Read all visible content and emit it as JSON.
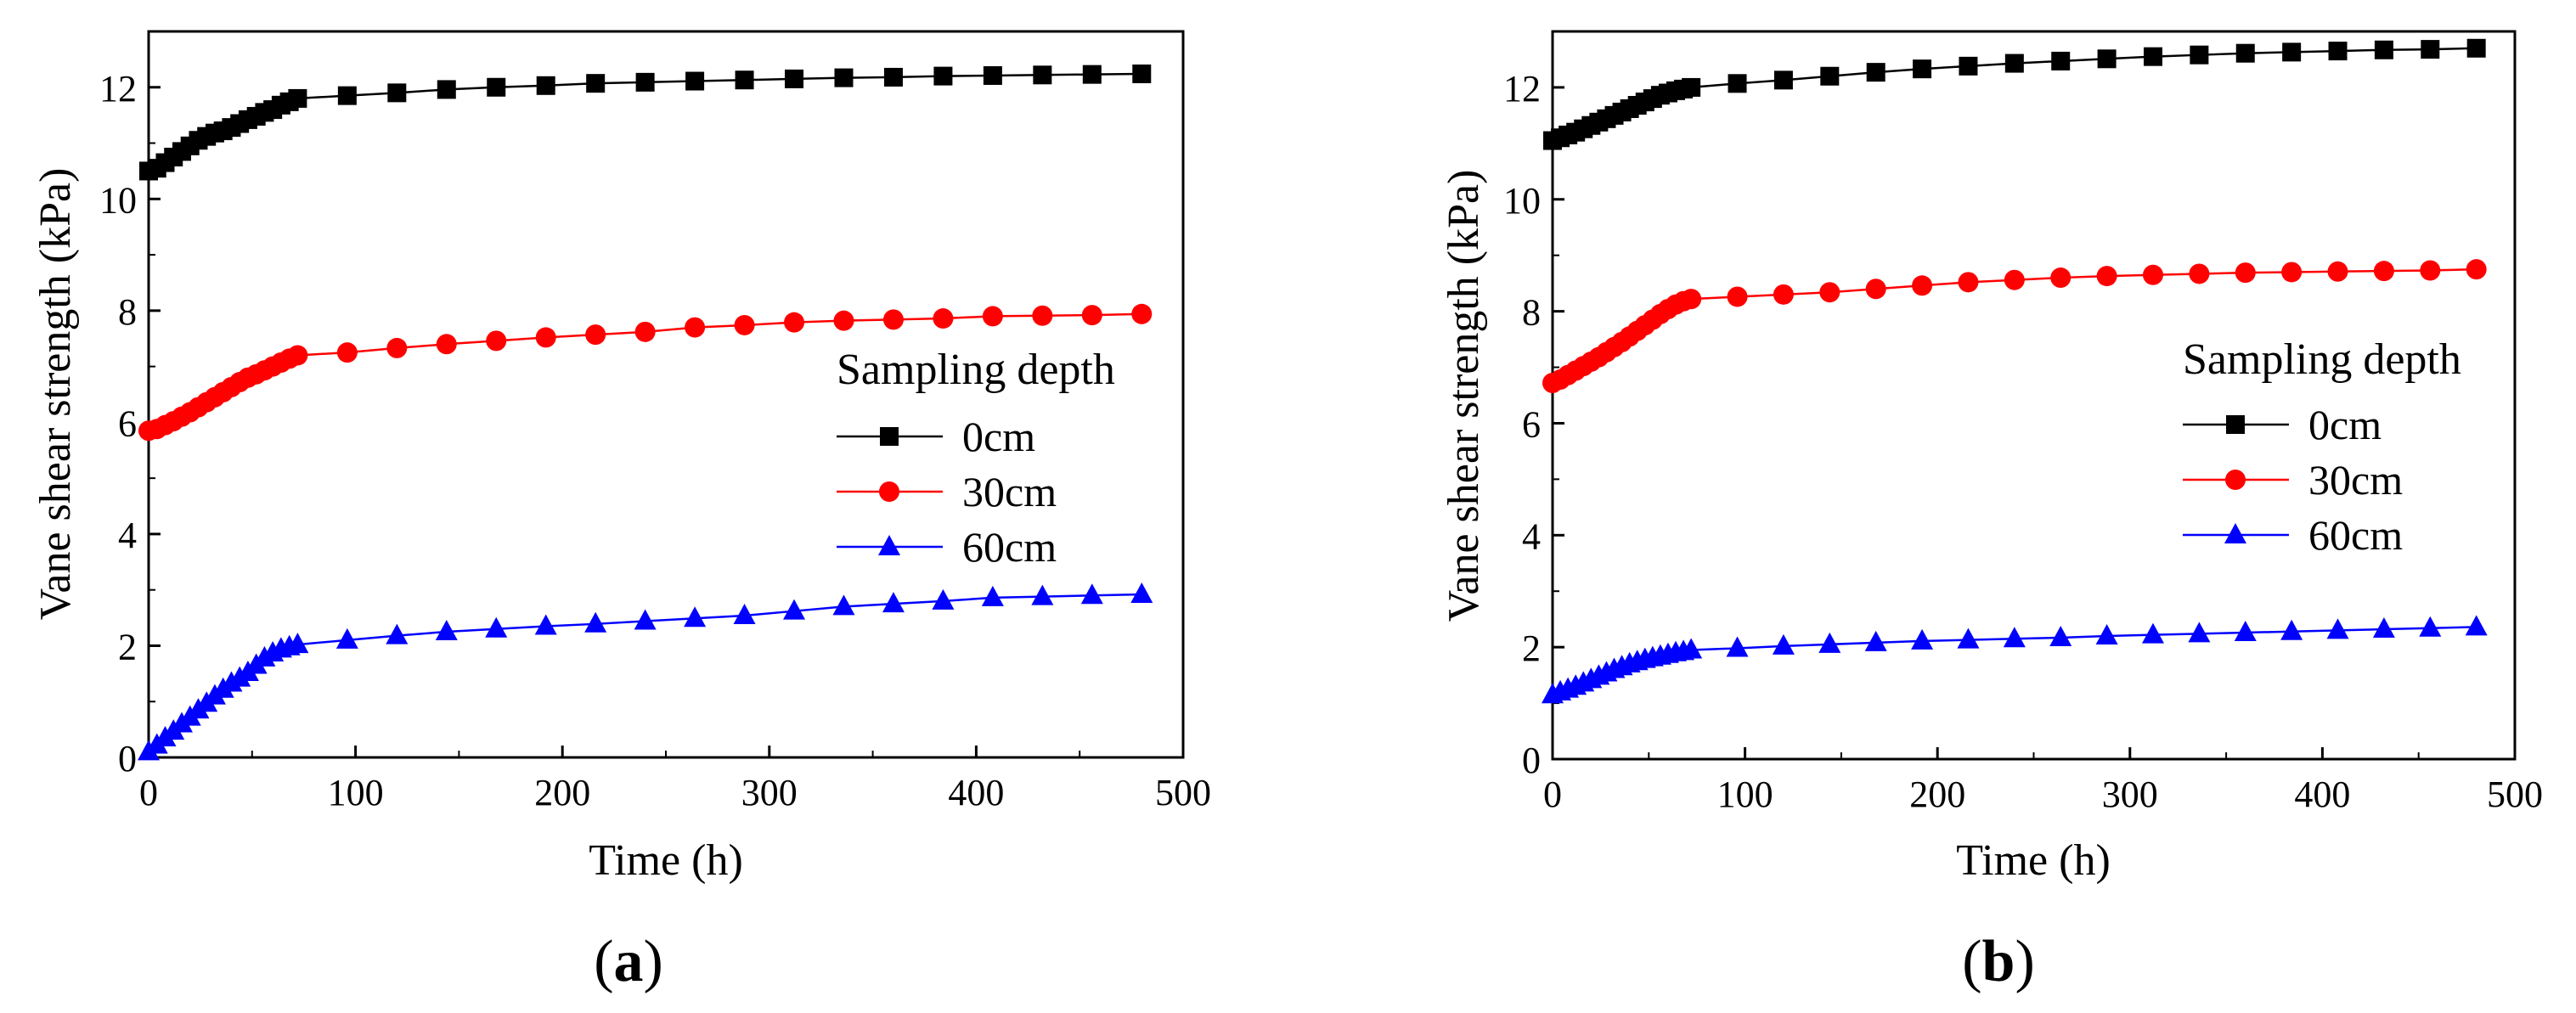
{
  "chart_data": [
    {
      "panel_label": "a",
      "type": "line",
      "xlabel": "Time (h)",
      "ylabel": "Vane shear strength (kPa)",
      "xlim": [
        0,
        500
      ],
      "ylim": [
        0,
        13
      ],
      "xticks": [
        0,
        100,
        200,
        300,
        400,
        500
      ],
      "yticks": [
        0,
        2,
        4,
        6,
        8,
        10,
        12
      ],
      "legend_title": "Sampling depth",
      "legend_position": "right-middle",
      "series": [
        {
          "name": "0cm",
          "color": "#000000",
          "marker": "square",
          "x": [
            0,
            4,
            8,
            12,
            16,
            20,
            24,
            28,
            32,
            36,
            40,
            44,
            48,
            52,
            56,
            60,
            64,
            68,
            72,
            96,
            120,
            144,
            168,
            192,
            216,
            240,
            264,
            288,
            312,
            336,
            360,
            384,
            408,
            432,
            456,
            480
          ],
          "y": [
            10.5,
            10.55,
            10.65,
            10.75,
            10.85,
            10.95,
            11.05,
            11.12,
            11.18,
            11.22,
            11.28,
            11.35,
            11.42,
            11.48,
            11.55,
            11.6,
            11.68,
            11.74,
            11.8,
            11.85,
            11.9,
            11.96,
            12.0,
            12.03,
            12.07,
            12.09,
            12.11,
            12.13,
            12.15,
            12.17,
            12.18,
            12.2,
            12.21,
            12.22,
            12.23,
            12.24
          ]
        },
        {
          "name": "30cm",
          "color": "#ff0000",
          "marker": "circle",
          "x": [
            0,
            4,
            8,
            12,
            16,
            20,
            24,
            28,
            32,
            36,
            40,
            44,
            48,
            52,
            56,
            60,
            64,
            68,
            72,
            96,
            120,
            144,
            168,
            192,
            216,
            240,
            264,
            288,
            312,
            336,
            360,
            384,
            408,
            432,
            456,
            480
          ],
          "y": [
            5.85,
            5.88,
            5.95,
            6.02,
            6.1,
            6.18,
            6.27,
            6.36,
            6.45,
            6.54,
            6.63,
            6.72,
            6.8,
            6.86,
            6.93,
            7.0,
            7.07,
            7.14,
            7.2,
            7.25,
            7.33,
            7.4,
            7.46,
            7.52,
            7.57,
            7.62,
            7.7,
            7.74,
            7.79,
            7.82,
            7.84,
            7.86,
            7.9,
            7.91,
            7.92,
            7.94
          ]
        },
        {
          "name": "60cm",
          "color": "#0000ff",
          "marker": "triangle",
          "x": [
            0,
            4,
            8,
            12,
            16,
            20,
            24,
            28,
            32,
            36,
            40,
            44,
            48,
            52,
            56,
            60,
            64,
            68,
            72,
            96,
            120,
            144,
            168,
            192,
            216,
            240,
            264,
            288,
            312,
            336,
            360,
            384,
            408,
            432,
            456,
            480
          ],
          "y": [
            0.1,
            0.22,
            0.35,
            0.47,
            0.6,
            0.72,
            0.85,
            0.97,
            1.1,
            1.22,
            1.33,
            1.42,
            1.52,
            1.65,
            1.78,
            1.87,
            1.94,
            1.98,
            2.02,
            2.1,
            2.18,
            2.25,
            2.3,
            2.35,
            2.39,
            2.44,
            2.49,
            2.54,
            2.62,
            2.7,
            2.75,
            2.8,
            2.86,
            2.88,
            2.9,
            2.92
          ]
        }
      ]
    },
    {
      "panel_label": "b",
      "type": "line",
      "xlabel": "Time (h)",
      "ylabel": "Vane shear strength (kPa)",
      "xlim": [
        0,
        500
      ],
      "ylim": [
        0,
        13
      ],
      "xticks": [
        0,
        100,
        200,
        300,
        400,
        500
      ],
      "yticks": [
        0,
        2,
        4,
        6,
        8,
        10,
        12
      ],
      "legend_title": "Sampling depth",
      "legend_position": "right-middle",
      "series": [
        {
          "name": "0cm",
          "color": "#000000",
          "marker": "square",
          "x": [
            0,
            4,
            8,
            12,
            16,
            20,
            24,
            28,
            32,
            36,
            40,
            44,
            48,
            52,
            56,
            60,
            64,
            68,
            72,
            96,
            120,
            144,
            168,
            192,
            216,
            240,
            264,
            288,
            312,
            336,
            360,
            384,
            408,
            432,
            456,
            480
          ],
          "y": [
            11.05,
            11.1,
            11.15,
            11.2,
            11.26,
            11.32,
            11.38,
            11.44,
            11.5,
            11.56,
            11.62,
            11.68,
            11.74,
            11.8,
            11.86,
            11.9,
            11.94,
            11.97,
            12.0,
            12.07,
            12.13,
            12.2,
            12.27,
            12.33,
            12.38,
            12.43,
            12.47,
            12.51,
            12.55,
            12.58,
            12.61,
            12.63,
            12.65,
            12.67,
            12.68,
            12.7
          ]
        },
        {
          "name": "30cm",
          "color": "#ff0000",
          "marker": "circle",
          "x": [
            0,
            4,
            8,
            12,
            16,
            20,
            24,
            28,
            32,
            36,
            40,
            44,
            48,
            52,
            56,
            60,
            64,
            68,
            72,
            96,
            120,
            144,
            168,
            192,
            216,
            240,
            264,
            288,
            312,
            336,
            360,
            384,
            408,
            432,
            456,
            480
          ],
          "y": [
            6.72,
            6.78,
            6.86,
            6.94,
            7.02,
            7.1,
            7.18,
            7.27,
            7.36,
            7.45,
            7.55,
            7.65,
            7.75,
            7.85,
            7.95,
            8.04,
            8.12,
            8.18,
            8.22,
            8.26,
            8.3,
            8.34,
            8.4,
            8.46,
            8.52,
            8.56,
            8.6,
            8.63,
            8.65,
            8.67,
            8.69,
            8.7,
            8.71,
            8.72,
            8.73,
            8.75
          ]
        },
        {
          "name": "60cm",
          "color": "#0000ff",
          "marker": "triangle",
          "x": [
            0,
            4,
            8,
            12,
            16,
            20,
            24,
            28,
            32,
            36,
            40,
            44,
            48,
            52,
            56,
            60,
            64,
            68,
            72,
            96,
            120,
            144,
            168,
            192,
            216,
            240,
            264,
            288,
            312,
            336,
            360,
            384,
            408,
            432,
            456,
            480
          ],
          "y": [
            1.15,
            1.2,
            1.25,
            1.3,
            1.36,
            1.42,
            1.48,
            1.54,
            1.6,
            1.65,
            1.7,
            1.74,
            1.78,
            1.81,
            1.84,
            1.87,
            1.9,
            1.92,
            1.95,
            1.98,
            2.02,
            2.05,
            2.08,
            2.11,
            2.13,
            2.15,
            2.17,
            2.2,
            2.22,
            2.24,
            2.26,
            2.28,
            2.3,
            2.32,
            2.34,
            2.36
          ]
        }
      ]
    }
  ]
}
